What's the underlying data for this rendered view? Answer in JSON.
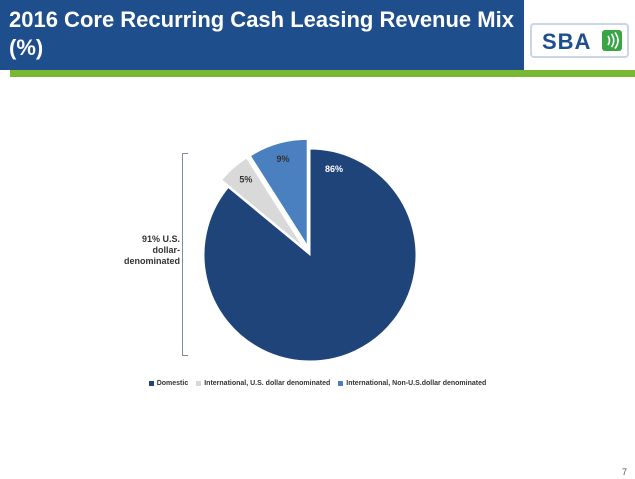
{
  "title": "2016 Core Recurring Cash Leasing Revenue Mix (%)",
  "logo": {
    "text": "SBA",
    "icon": "signal-waves-icon",
    "color": "#1f4e8c"
  },
  "bracket_label": "91% U.S. dollar-denominated",
  "page_number": "7",
  "chart_data": {
    "type": "pie",
    "title": "",
    "categories": [
      "Domestic",
      "International, U.S. dollar denominated",
      "International, Non-U.S.dollar denominated"
    ],
    "values": [
      86,
      5,
      9
    ],
    "labels": [
      "86%",
      "5%",
      "9%"
    ],
    "colors": [
      "#1f4479",
      "#d9d9d9",
      "#4a7fc0"
    ],
    "exploded": [
      1,
      2
    ],
    "legend_position": "bottom"
  }
}
